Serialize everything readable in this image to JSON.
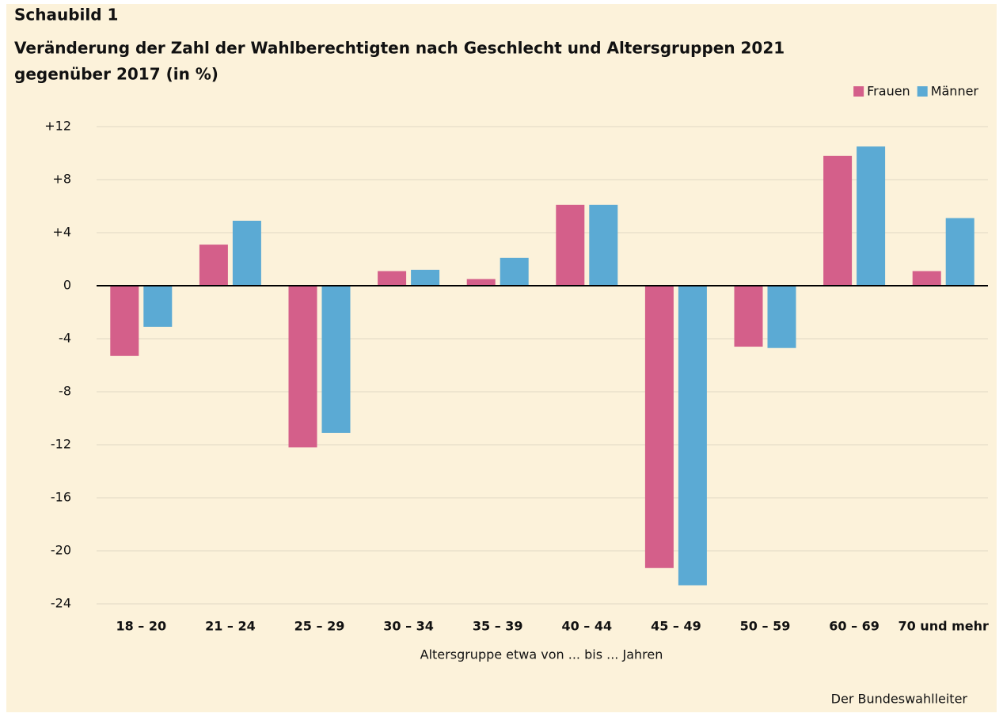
{
  "chart_data": {
    "type": "bar",
    "supertitle": "Schaubild 1",
    "title": [
      "Veränderung der Zahl der Wahlberechtigten nach Geschlecht und Altersgruppen 2021",
      "gegenüber 2017 (in %)"
    ],
    "xlabel": "Altersgruppe etwa von ... bis ... Jahren",
    "source": "Der Bundeswahlleiter",
    "categories": [
      "18 – 20",
      "21 – 24",
      "25 – 29",
      "30 – 34",
      "35 – 39",
      "40 – 44",
      "45 – 49",
      "50 – 59",
      "60 – 69",
      "70 und mehr"
    ],
    "series": [
      {
        "name": "Frauen",
        "color": "#d45f8a",
        "values": [
          -5.3,
          3.1,
          -12.2,
          1.1,
          0.5,
          6.1,
          -21.3,
          -4.6,
          9.8,
          1.1
        ]
      },
      {
        "name": "Männer",
        "color": "#5baad4",
        "values": [
          -3.1,
          4.9,
          -11.1,
          1.2,
          2.1,
          6.1,
          -22.6,
          -4.7,
          10.5,
          5.1
        ]
      }
    ],
    "ylim": [
      -24,
      12
    ],
    "yticks": [
      {
        "value": 12,
        "label": "+12"
      },
      {
        "value": 8,
        "label": "+8"
      },
      {
        "value": 4,
        "label": "+4"
      },
      0,
      -4,
      -8,
      -12,
      -16,
      -20,
      -24
    ],
    "grid": true,
    "legend": "top-right"
  }
}
